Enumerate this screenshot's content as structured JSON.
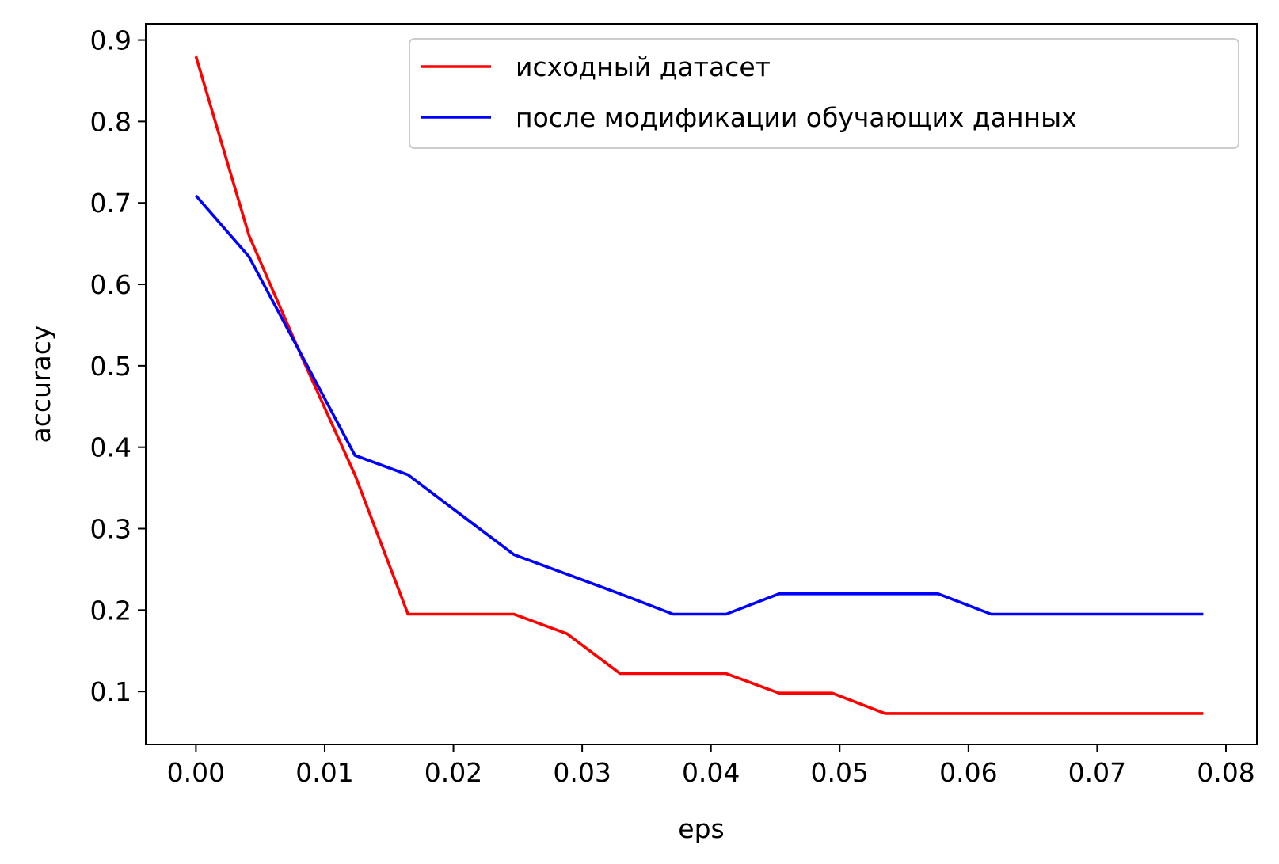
{
  "chart_data": {
    "type": "line",
    "title": "",
    "xlabel": "eps",
    "ylabel": "accuracy",
    "xlim": [
      -0.0039,
      0.0824
    ],
    "ylim": [
      0.035,
      0.92
    ],
    "xticks": [
      0.0,
      0.01,
      0.02,
      0.03,
      0.04,
      0.05,
      0.06,
      0.07,
      0.08
    ],
    "xtick_labels": [
      "0.00",
      "0.01",
      "0.02",
      "0.03",
      "0.04",
      "0.05",
      "0.06",
      "0.07",
      "0.08"
    ],
    "yticks": [
      0.1,
      0.2,
      0.3,
      0.4,
      0.5,
      0.6,
      0.7,
      0.8,
      0.9
    ],
    "ytick_labels": [
      "0.1",
      "0.2",
      "0.3",
      "0.4",
      "0.5",
      "0.6",
      "0.7",
      "0.8",
      "0.9"
    ],
    "grid": false,
    "legend_position": "top-right",
    "x": [
      0.0,
      0.00412,
      0.00824,
      0.01235,
      0.01647,
      0.02059,
      0.02471,
      0.02882,
      0.03294,
      0.03706,
      0.04118,
      0.04529,
      0.04941,
      0.05353,
      0.05765,
      0.06176,
      0.06588,
      0.07,
      0.07412,
      0.07824
    ],
    "series": [
      {
        "name": "исходный датасет",
        "color": "#ff0000",
        "values": [
          0.88,
          0.66,
          0.51,
          0.366,
          0.195,
          0.195,
          0.195,
          0.171,
          0.122,
          0.122,
          0.122,
          0.098,
          0.098,
          0.073,
          0.073,
          0.073,
          0.073,
          0.073,
          0.073,
          0.073
        ]
      },
      {
        "name": "после модификации обучающих данных",
        "color": "#0000ff",
        "values": [
          0.709,
          0.634,
          0.512,
          0.39,
          0.366,
          0.317,
          0.268,
          0.244,
          0.22,
          0.195,
          0.195,
          0.22,
          0.22,
          0.22,
          0.22,
          0.195,
          0.195,
          0.195,
          0.195,
          0.195
        ]
      }
    ]
  }
}
